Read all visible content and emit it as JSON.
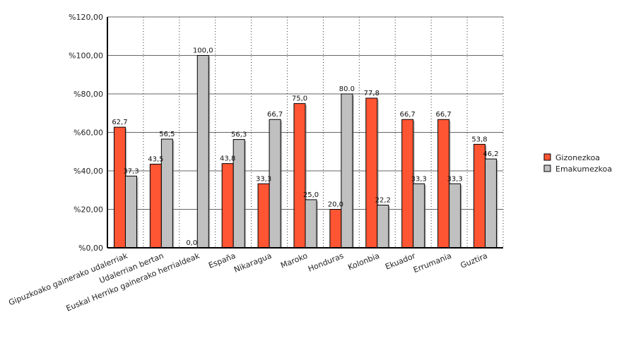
{
  "chart_data": {
    "type": "bar",
    "categories": [
      "Gipuzkoako gainerako udalerriak",
      "Udalerrian bertan",
      "Euskal Herriko gainerako herrialdeak",
      "España",
      "Nikaragua",
      "Maroko",
      "Honduras",
      "Kolonbia",
      "Ekuador",
      "Errumania",
      "Guztira"
    ],
    "series": [
      {
        "name": "Gizonezkoa",
        "color": "#ff5533",
        "values": [
          62.7,
          43.5,
          0.0,
          43.8,
          33.3,
          75.0,
          20.0,
          77.8,
          66.7,
          66.7,
          53.8
        ],
        "labels": [
          "62,7",
          "43,5",
          "0,0",
          "43,8",
          "33,3",
          "75,0",
          "20,0",
          "77,8",
          "66,7",
          "66,7",
          "53,8"
        ]
      },
      {
        "name": "Emakumezkoa",
        "color": "#c0c0c0",
        "values": [
          37.3,
          56.5,
          100.0,
          56.3,
          66.7,
          25.0,
          80.0,
          22.2,
          33.3,
          33.3,
          46.2
        ],
        "labels": [
          "37,3",
          "56,5",
          "100,0",
          "56,3",
          "66,7",
          "25,0",
          "80.0",
          "22,2",
          "33,3",
          "33,3",
          "46,2"
        ]
      }
    ],
    "ylim": [
      0,
      120
    ],
    "yticks": [
      0,
      20,
      40,
      60,
      80,
      100,
      120
    ],
    "ytick_labels": [
      "%0,00",
      "%20,00",
      "%40,00",
      "%60,00",
      "%80,00",
      "%100,00",
      "%120,00"
    ],
    "grid": {
      "horizontal": "solid",
      "vertical": "dotted"
    },
    "legend_position": "right",
    "xlabel": "",
    "ylabel": "",
    "title": ""
  }
}
